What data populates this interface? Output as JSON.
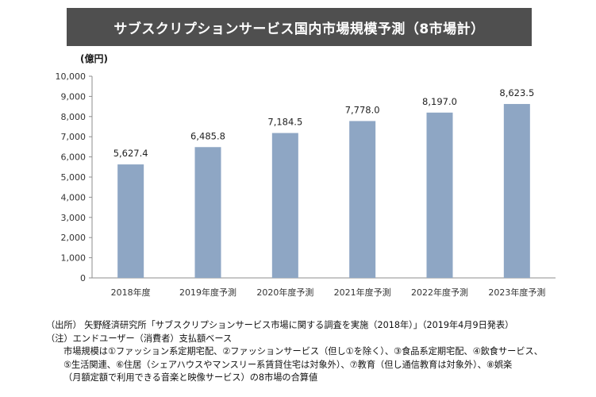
{
  "chart_data": {
    "type": "bar",
    "title": "サブスクリプションサービス国内市場規模予測（8市場計）",
    "unit_label": "(億円)",
    "categories": [
      "2018年度",
      "2019年度予測",
      "2020年度予測",
      "2021年度予測",
      "2022年度予測",
      "2023年度予測"
    ],
    "values": [
      5627.4,
      6485.8,
      7184.5,
      7778.0,
      8197.0,
      8623.5
    ],
    "value_labels": [
      "5,627.4",
      "6,485.8",
      "7,184.5",
      "7,778.0",
      "8,197.0",
      "8,623.5"
    ],
    "ylim": [
      0,
      10000
    ],
    "yticks": [
      0,
      1000,
      2000,
      3000,
      4000,
      5000,
      6000,
      7000,
      8000,
      9000,
      10000
    ],
    "ytick_labels": [
      "0",
      "1,000",
      "2,000",
      "3,000",
      "4,000",
      "5,000",
      "6,000",
      "7,000",
      "8,000",
      "9,000",
      "10,000"
    ],
    "grid": false,
    "bar_color": "#8ea6c4"
  },
  "notes": {
    "source": "（出所） 矢野経済研究所「サブスクリプションサービス市場に関する調査を実施（2018年）」（2019年4月9日発表）",
    "note_head": "（注）エンドユーザー（消費者）支払額ベース",
    "note_line1": "市場規模は①ファッション系定期宅配、②ファッションサービス（但し①を除く）、③食品系定期宅配、④飲食サービス、",
    "note_line2": "⑤生活関連、⑥住居（シェアハウスやマンスリー系賃貸住宅は対象外）、⑦教育（但し通信教育は対象外）、⑧娯楽",
    "note_line3": "（月額定額で利用できる音楽と映像サービス）の8市場の合算値"
  }
}
